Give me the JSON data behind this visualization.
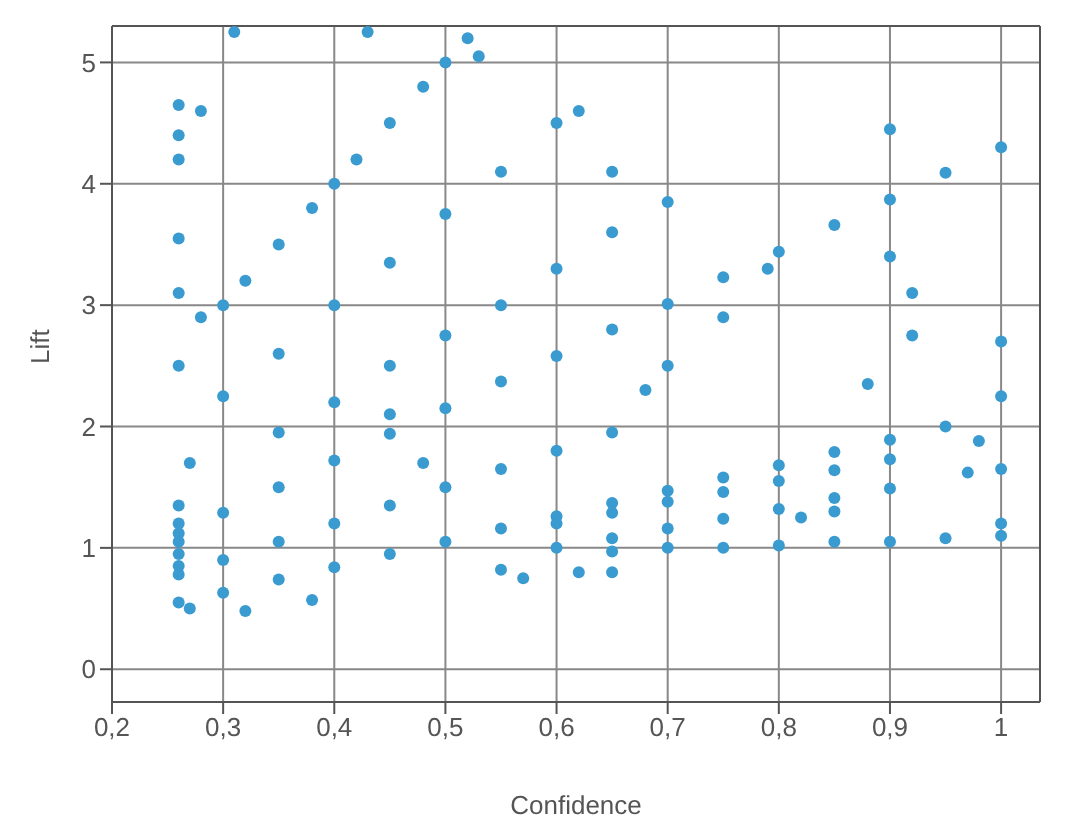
{
  "chart_data": {
    "type": "scatter",
    "xlabel": "Confidence",
    "ylabel": "Lift",
    "xlim": [
      0.2,
      1.035
    ],
    "ylim": [
      -0.27,
      5.3
    ],
    "xticks": [
      {
        "value": 0.2,
        "label": "0,2"
      },
      {
        "value": 0.3,
        "label": "0,3"
      },
      {
        "value": 0.4,
        "label": "0,4"
      },
      {
        "value": 0.5,
        "label": "0,5"
      },
      {
        "value": 0.6,
        "label": "0,6"
      },
      {
        "value": 0.7,
        "label": "0,7"
      },
      {
        "value": 0.8,
        "label": "0,8"
      },
      {
        "value": 0.9,
        "label": "0,9"
      },
      {
        "value": 1,
        "label": "1"
      }
    ],
    "yticks": [
      0,
      1,
      2,
      3,
      4,
      5
    ],
    "grid": true,
    "legend": false,
    "marker": "circle",
    "series": [
      {
        "color": "#3a9bd0",
        "x": [
          0.26,
          0.3,
          0.35,
          0.4,
          0.45,
          0.5,
          0.55,
          0.6,
          0.65,
          0.7,
          0.75,
          0.8,
          0.85,
          0.9,
          0.95,
          1.0,
          0.26,
          0.3,
          0.35,
          0.4,
          0.45,
          0.5,
          0.55,
          0.6,
          0.65,
          0.7,
          0.75,
          0.8,
          0.85,
          0.9,
          0.95,
          0.26,
          0.3,
          0.35,
          0.4,
          0.45,
          0.5,
          0.55,
          0.6,
          0.65,
          0.6,
          0.65,
          0.7,
          0.75,
          0.8,
          0.85,
          0.9,
          0.98,
          0.6,
          0.65,
          0.7,
          0.75,
          0.8,
          0.85,
          0.9,
          0.97,
          0.65,
          0.7,
          0.75,
          0.8,
          0.85,
          0.9,
          0.95,
          1.0,
          0.26,
          0.26,
          0.26,
          0.26,
          0.26,
          0.27,
          0.26,
          0.26,
          0.26,
          0.26,
          0.26,
          0.26,
          0.28,
          0.28,
          0.27,
          0.3,
          0.32,
          0.35,
          0.38,
          0.4,
          0.42,
          0.45,
          0.48,
          0.5,
          0.3,
          0.35,
          0.4,
          0.45,
          0.5,
          0.55,
          0.6,
          0.35,
          0.4,
          0.45,
          0.5,
          0.55,
          0.6,
          0.65,
          0.7,
          0.31,
          0.43,
          0.52,
          0.53,
          0.62,
          0.65,
          0.9,
          0.79,
          0.9,
          0.92,
          0.92,
          0.88,
          1.0,
          1.0,
          1.0,
          1.0,
          0.57,
          0.62,
          0.55,
          0.32,
          0.38,
          0.75,
          0.7,
          0.68,
          0.82,
          0.85,
          0.65,
          0.45,
          0.48
        ],
        "values": [
          1.12,
          1.29,
          1.5,
          1.72,
          1.94,
          2.15,
          2.37,
          2.58,
          2.8,
          3.01,
          3.23,
          3.44,
          3.66,
          3.87,
          4.09,
          4.3,
          0.55,
          0.63,
          0.74,
          0.84,
          0.95,
          1.05,
          1.16,
          1.26,
          1.37,
          1.47,
          1.58,
          1.68,
          1.79,
          1.89,
          2.0,
          0.78,
          0.9,
          1.05,
          1.2,
          1.35,
          1.5,
          1.65,
          1.8,
          1.95,
          1.2,
          1.29,
          1.38,
          1.46,
          1.55,
          1.64,
          1.73,
          1.88,
          1.0,
          1.08,
          1.16,
          1.24,
          1.32,
          1.41,
          1.49,
          1.62,
          0.97,
          1.0,
          1.0,
          1.02,
          1.05,
          1.05,
          1.08,
          1.1,
          0.85,
          0.95,
          1.05,
          1.2,
          1.35,
          1.7,
          2.5,
          3.1,
          3.55,
          4.2,
          4.4,
          4.65,
          4.6,
          2.9,
          0.5,
          3.0,
          3.2,
          3.5,
          3.8,
          4.0,
          4.2,
          4.5,
          4.8,
          5.0,
          2.25,
          2.6,
          3.0,
          3.35,
          3.75,
          4.1,
          4.5,
          1.95,
          2.2,
          2.5,
          2.75,
          3.0,
          3.3,
          3.6,
          3.85,
          5.25,
          5.25,
          5.2,
          5.05,
          4.6,
          4.1,
          4.45,
          3.3,
          3.4,
          3.1,
          2.75,
          2.35,
          2.7,
          2.25,
          1.65,
          1.2,
          0.75,
          0.8,
          0.82,
          0.48,
          0.57,
          2.9,
          2.5,
          2.3,
          1.25,
          1.3,
          0.8,
          2.1,
          1.7
        ]
      }
    ]
  }
}
